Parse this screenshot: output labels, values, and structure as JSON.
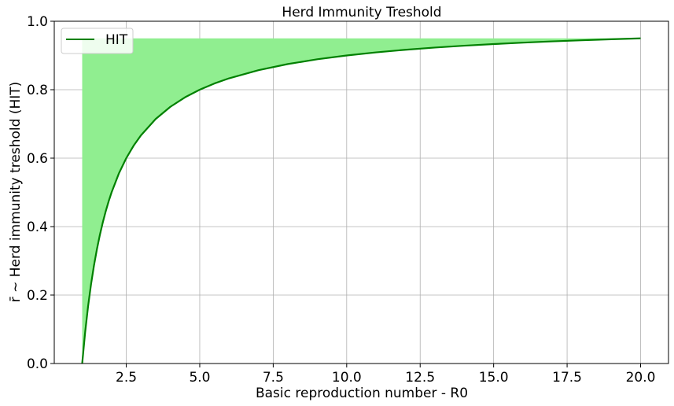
{
  "chart_data": {
    "type": "line",
    "title": "Herd Immunity Treshold",
    "xlabel": "Basic reproduction number - R0",
    "ylabel": "r̄ ~ Herd immunity treshold (HIT)",
    "xlim": [
      0.05,
      20.95
    ],
    "ylim": [
      0.0,
      1.0
    ],
    "xticks": [
      2.5,
      5.0,
      7.5,
      10.0,
      12.5,
      15.0,
      17.5,
      20.0
    ],
    "xtick_labels": [
      "2.5",
      "5.0",
      "7.5",
      "10.0",
      "12.5",
      "15.0",
      "17.5",
      "20.0"
    ],
    "yticks": [
      0.0,
      0.2,
      0.4,
      0.6,
      0.8,
      1.0
    ],
    "ytick_labels": [
      "0.0",
      "0.2",
      "0.4",
      "0.6",
      "0.8",
      "1.0"
    ],
    "grid": true,
    "legend_position": "top-left",
    "series": [
      {
        "name": "HIT",
        "color": "#008000",
        "fill_color": "#90ee90",
        "fill_to": 0.95,
        "x": [
          1.0,
          1.1,
          1.2,
          1.3,
          1.4,
          1.5,
          1.6,
          1.7,
          1.8,
          1.9,
          2.0,
          2.25,
          2.5,
          2.75,
          3.0,
          3.5,
          4.0,
          4.5,
          5.0,
          5.5,
          6.0,
          7.0,
          8.0,
          9.0,
          10.0,
          11.0,
          12.0,
          13.0,
          14.0,
          15.0,
          16.0,
          17.0,
          18.0,
          19.0,
          20.0
        ],
        "y": [
          0.0,
          0.0909,
          0.1667,
          0.2308,
          0.2857,
          0.3333,
          0.375,
          0.4118,
          0.4444,
          0.4737,
          0.5,
          0.5556,
          0.6,
          0.6364,
          0.6667,
          0.7143,
          0.75,
          0.7778,
          0.8,
          0.8182,
          0.8333,
          0.8571,
          0.875,
          0.8889,
          0.9,
          0.9091,
          0.9167,
          0.9231,
          0.9286,
          0.9333,
          0.9375,
          0.9412,
          0.9444,
          0.9474,
          0.95
        ]
      }
    ]
  }
}
